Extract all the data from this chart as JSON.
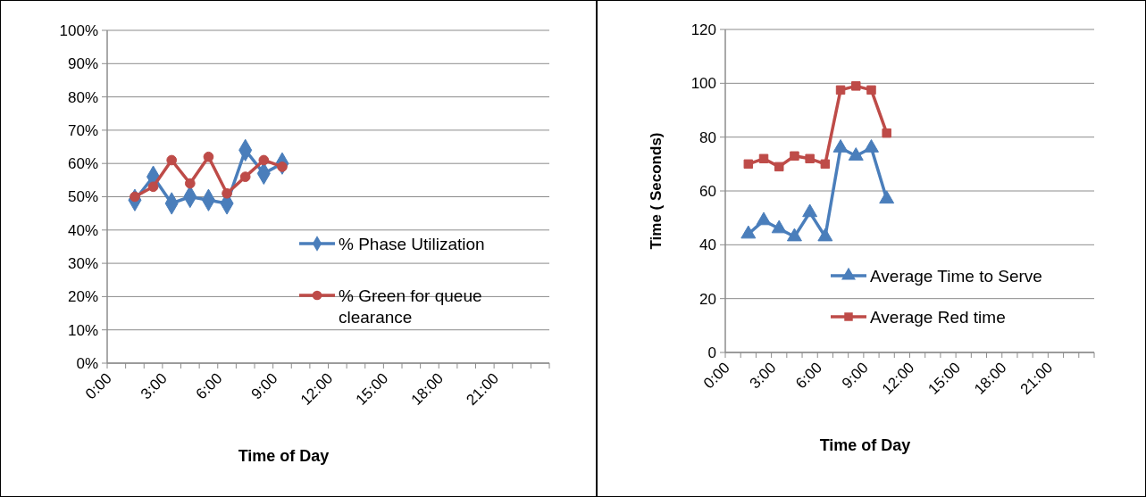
{
  "chart_data": [
    {
      "type": "line",
      "xlabel": "Time of Day",
      "x": [
        1.5,
        2.5,
        3.5,
        4.5,
        5.5,
        6.5,
        7.5,
        8.5,
        9.5
      ],
      "xlim": [
        0,
        24
      ],
      "xticks": [
        {
          "value": 0,
          "label": "0:00"
        },
        {
          "value": 1,
          "label": null
        },
        {
          "value": 2,
          "label": null
        },
        {
          "value": 3,
          "label": "3:00"
        },
        {
          "value": 4,
          "label": null
        },
        {
          "value": 5,
          "label": null
        },
        {
          "value": 6,
          "label": "6:00"
        },
        {
          "value": 7,
          "label": null
        },
        {
          "value": 8,
          "label": null
        },
        {
          "value": 9,
          "label": "9:00"
        },
        {
          "value": 10,
          "label": null
        },
        {
          "value": 11,
          "label": null
        },
        {
          "value": 12,
          "label": "12:00"
        },
        {
          "value": 13,
          "label": null
        },
        {
          "value": 14,
          "label": null
        },
        {
          "value": 15,
          "label": "15:00"
        },
        {
          "value": 16,
          "label": null
        },
        {
          "value": 17,
          "label": null
        },
        {
          "value": 18,
          "label": "18:00"
        },
        {
          "value": 19,
          "label": null
        },
        {
          "value": 20,
          "label": null
        },
        {
          "value": 21,
          "label": "21:00"
        },
        {
          "value": 22,
          "label": null
        },
        {
          "value": 23,
          "label": null
        },
        {
          "value": 24,
          "label": null
        }
      ],
      "ylim": [
        0,
        100
      ],
      "yticks": [
        {
          "value": 0,
          "label": "0%"
        },
        {
          "value": 10,
          "label": "10%"
        },
        {
          "value": 20,
          "label": "20%"
        },
        {
          "value": 30,
          "label": "30%"
        },
        {
          "value": 40,
          "label": "40%"
        },
        {
          "value": 50,
          "label": "50%"
        },
        {
          "value": 60,
          "label": "60%"
        },
        {
          "value": 70,
          "label": "70%"
        },
        {
          "value": 80,
          "label": "80%"
        },
        {
          "value": 90,
          "label": "90%"
        },
        {
          "value": 100,
          "label": "100%"
        }
      ],
      "grid": "y",
      "legend": "right",
      "series": [
        {
          "name": "% Phase Utilization",
          "color": "#4a7ebb",
          "marker": "diamond",
          "values": [
            49,
            56,
            48,
            50,
            49,
            48,
            64,
            57,
            60
          ]
        },
        {
          "name": "% Green for queue clearance",
          "color": "#be4b48",
          "marker": "circle",
          "values": [
            50,
            53,
            61,
            54,
            62,
            51,
            56,
            61,
            59
          ]
        }
      ]
    },
    {
      "type": "line",
      "xlabel": "Time of Day",
      "ylabel": "Time ( Seconds)",
      "x": [
        1.5,
        2.5,
        3.5,
        4.5,
        5.5,
        6.5,
        7.5,
        8.5,
        9.5,
        10.5
      ],
      "xlim": [
        0,
        24
      ],
      "xticks": [
        {
          "value": 0,
          "label": "0:00"
        },
        {
          "value": 1,
          "label": null
        },
        {
          "value": 2,
          "label": null
        },
        {
          "value": 3,
          "label": "3:00"
        },
        {
          "value": 4,
          "label": null
        },
        {
          "value": 5,
          "label": null
        },
        {
          "value": 6,
          "label": "6:00"
        },
        {
          "value": 7,
          "label": null
        },
        {
          "value": 8,
          "label": null
        },
        {
          "value": 9,
          "label": "9:00"
        },
        {
          "value": 10,
          "label": null
        },
        {
          "value": 11,
          "label": null
        },
        {
          "value": 12,
          "label": "12:00"
        },
        {
          "value": 13,
          "label": null
        },
        {
          "value": 14,
          "label": null
        },
        {
          "value": 15,
          "label": "15:00"
        },
        {
          "value": 16,
          "label": null
        },
        {
          "value": 17,
          "label": null
        },
        {
          "value": 18,
          "label": "18:00"
        },
        {
          "value": 19,
          "label": null
        },
        {
          "value": 20,
          "label": null
        },
        {
          "value": 21,
          "label": "21:00"
        },
        {
          "value": 22,
          "label": null
        },
        {
          "value": 23,
          "label": null
        },
        {
          "value": 24,
          "label": null
        }
      ],
      "ylim": [
        0,
        120
      ],
      "yticks": [
        0,
        20,
        40,
        60,
        80,
        100,
        120
      ],
      "grid": "y",
      "legend": "bottom right",
      "series": [
        {
          "name": "Average Time to Serve",
          "color": "#4a7ebb",
          "marker": "triangle",
          "values": [
            44,
            49,
            46,
            43,
            52,
            43,
            76,
            73,
            76,
            57
          ]
        },
        {
          "name": "Average Red time",
          "color": "#be4b48",
          "marker": "square",
          "values": [
            70,
            72,
            69,
            73,
            72,
            70,
            97.5,
            99,
            97.5,
            81.5
          ]
        }
      ]
    }
  ]
}
